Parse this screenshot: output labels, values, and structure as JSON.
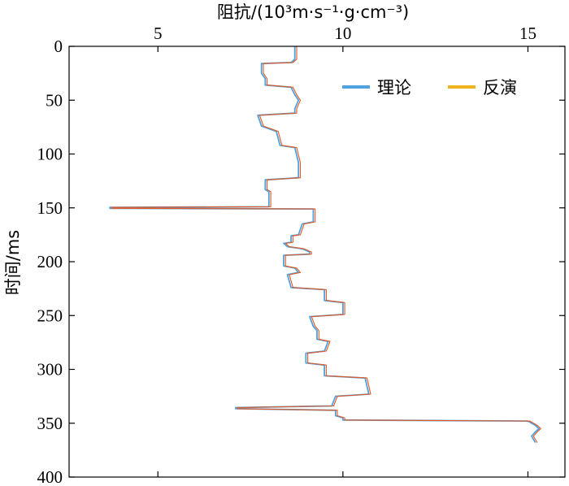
{
  "chart_data": {
    "type": "line",
    "title": "",
    "xlabel": "阻抗/(10³m·s⁻¹·g·cm⁻³)",
    "ylabel": "时间/ms",
    "xlim": [
      2.6,
      16.0
    ],
    "ylim": [
      0,
      400
    ],
    "y_reversed": true,
    "x_axis_position": "top",
    "xticks": [
      5,
      10,
      15
    ],
    "yticks": [
      0,
      50,
      100,
      150,
      200,
      250,
      300,
      350,
      400
    ],
    "legend_position": "top-right",
    "grid": false,
    "series": [
      {
        "name": "理论",
        "color": "#4DA3DF",
        "points": [
          [
            0,
            8.7
          ],
          [
            12,
            8.7
          ],
          [
            15,
            8.6
          ],
          [
            16,
            7.8
          ],
          [
            25,
            7.8
          ],
          [
            30,
            7.9
          ],
          [
            36,
            7.9
          ],
          [
            38,
            8.6
          ],
          [
            45,
            8.7
          ],
          [
            50,
            8.8
          ],
          [
            58,
            8.7
          ],
          [
            62,
            8.7
          ],
          [
            64,
            7.7
          ],
          [
            74,
            7.8
          ],
          [
            79,
            8.2
          ],
          [
            92,
            8.3
          ],
          [
            94,
            8.7
          ],
          [
            108,
            8.8
          ],
          [
            110,
            8.8
          ],
          [
            122,
            8.8
          ],
          [
            124,
            7.9
          ],
          [
            133,
            7.9
          ],
          [
            135,
            8.0
          ],
          [
            149,
            8.0
          ],
          [
            149.6,
            3.7
          ],
          [
            150.4,
            3.7
          ],
          [
            151,
            9.2
          ],
          [
            163,
            9.2
          ],
          [
            165,
            8.9
          ],
          [
            175,
            8.8
          ],
          [
            176,
            8.6
          ],
          [
            182,
            8.6
          ],
          [
            183,
            8.4
          ],
          [
            186,
            8.5
          ],
          [
            188,
            8.9
          ],
          [
            191,
            9.1
          ],
          [
            193,
            9.1
          ],
          [
            194,
            8.4
          ],
          [
            204,
            8.4
          ],
          [
            206,
            8.7
          ],
          [
            210,
            8.8
          ],
          [
            212,
            8.5
          ],
          [
            224,
            8.6
          ],
          [
            226,
            9.5
          ],
          [
            236,
            9.5
          ],
          [
            238,
            10.0
          ],
          [
            249,
            10.0
          ],
          [
            251,
            9.1
          ],
          [
            260,
            9.2
          ],
          [
            264,
            9.3
          ],
          [
            272,
            9.3
          ],
          [
            274,
            9.6
          ],
          [
            283,
            9.5
          ],
          [
            285,
            9.0
          ],
          [
            294,
            9.0
          ],
          [
            296,
            9.5
          ],
          [
            306,
            9.5
          ],
          [
            308,
            10.6
          ],
          [
            323,
            10.7
          ],
          [
            325,
            9.8
          ],
          [
            334,
            9.7
          ],
          [
            335.5,
            7.1
          ],
          [
            336.5,
            7.1
          ],
          [
            338,
            9.8
          ],
          [
            343,
            9.8
          ],
          [
            345,
            10.0
          ],
          [
            347,
            10.0
          ],
          [
            348,
            15.0
          ],
          [
            352,
            15.2
          ],
          [
            355,
            15.3
          ],
          [
            358,
            15.2
          ],
          [
            362,
            15.1
          ],
          [
            368,
            15.2
          ]
        ]
      },
      {
        "name": "反演",
        "color": "#F2B21B",
        "points": [
          [
            0,
            8.75
          ],
          [
            12,
            8.75
          ],
          [
            15,
            8.65
          ],
          [
            16,
            7.85
          ],
          [
            25,
            7.85
          ],
          [
            30,
            7.95
          ],
          [
            36,
            7.95
          ],
          [
            38,
            8.65
          ],
          [
            45,
            8.75
          ],
          [
            50,
            8.85
          ],
          [
            58,
            8.75
          ],
          [
            62,
            8.75
          ],
          [
            64,
            7.75
          ],
          [
            74,
            7.85
          ],
          [
            79,
            8.25
          ],
          [
            92,
            8.35
          ],
          [
            94,
            8.75
          ],
          [
            108,
            8.85
          ],
          [
            110,
            8.85
          ],
          [
            122,
            8.85
          ],
          [
            124,
            7.95
          ],
          [
            133,
            7.95
          ],
          [
            135,
            8.05
          ],
          [
            149,
            8.05
          ],
          [
            149.6,
            3.75
          ],
          [
            150.4,
            3.75
          ],
          [
            151,
            9.25
          ],
          [
            163,
            9.25
          ],
          [
            165,
            8.95
          ],
          [
            175,
            8.85
          ],
          [
            176,
            8.65
          ],
          [
            182,
            8.65
          ],
          [
            183,
            8.45
          ],
          [
            186,
            8.55
          ],
          [
            188,
            8.95
          ],
          [
            191,
            9.15
          ],
          [
            193,
            9.15
          ],
          [
            194,
            8.45
          ],
          [
            204,
            8.45
          ],
          [
            206,
            8.75
          ],
          [
            210,
            8.85
          ],
          [
            212,
            8.55
          ],
          [
            224,
            8.65
          ],
          [
            226,
            9.55
          ],
          [
            236,
            9.55
          ],
          [
            238,
            10.05
          ],
          [
            249,
            10.05
          ],
          [
            251,
            9.15
          ],
          [
            260,
            9.25
          ],
          [
            264,
            9.35
          ],
          [
            272,
            9.35
          ],
          [
            274,
            9.65
          ],
          [
            283,
            9.55
          ],
          [
            285,
            9.05
          ],
          [
            294,
            9.05
          ],
          [
            296,
            9.55
          ],
          [
            306,
            9.55
          ],
          [
            308,
            10.65
          ],
          [
            323,
            10.75
          ],
          [
            325,
            9.85
          ],
          [
            334,
            9.75
          ],
          [
            335.5,
            7.15
          ],
          [
            336.5,
            7.15
          ],
          [
            338,
            9.85
          ],
          [
            343,
            9.85
          ],
          [
            345,
            10.05
          ],
          [
            347,
            10.05
          ],
          [
            348,
            15.05
          ],
          [
            352,
            15.25
          ],
          [
            355,
            15.35
          ],
          [
            358,
            15.25
          ],
          [
            362,
            15.15
          ],
          [
            368,
            15.25
          ]
        ]
      }
    ]
  },
  "overlay_color": "#E8561E"
}
